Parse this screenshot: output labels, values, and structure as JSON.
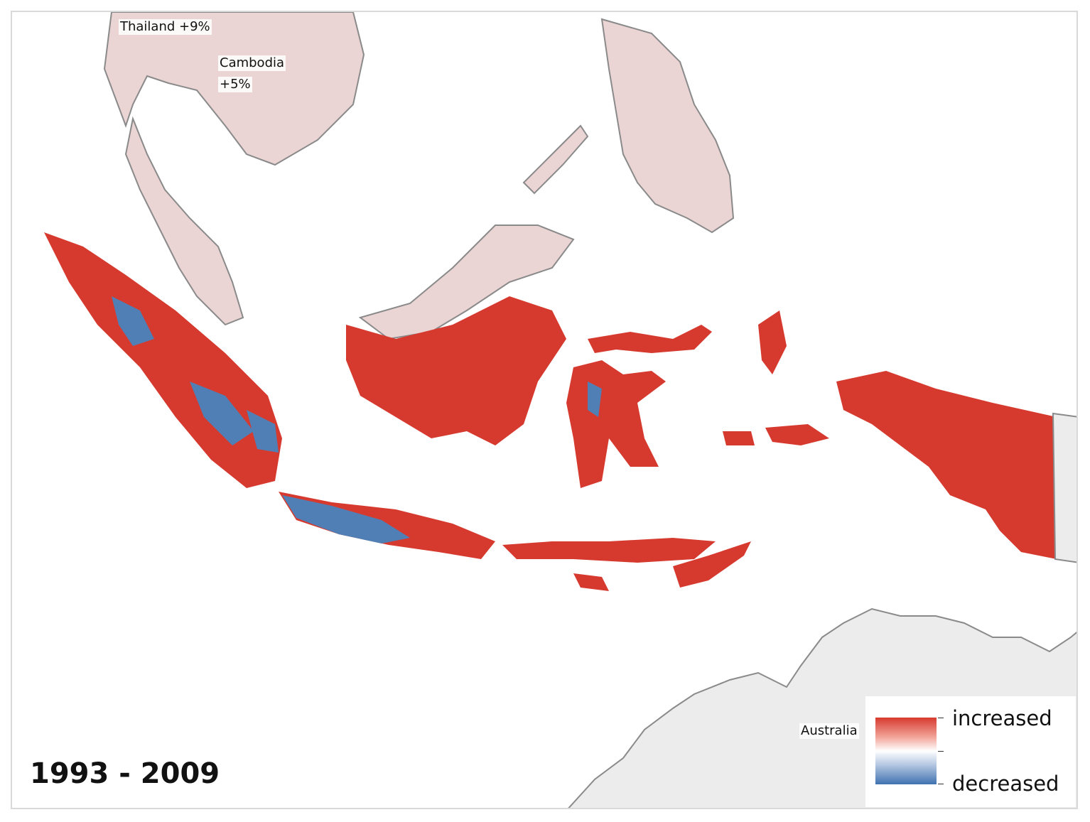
{
  "map": {
    "period": "1993 - 2009",
    "country_labels": {
      "thailand": "Thailand +9%",
      "cambodia_name": "Cambodia",
      "cambodia_value": "+5%",
      "australia": "Australia"
    },
    "legend": {
      "high_label": "increased",
      "low_label": "decreased",
      "color_high": "#d63a2f",
      "color_mid": "#ffffff",
      "color_low": "#3f72b0"
    },
    "colors": {
      "land_neutral": "#ececec",
      "land_light_increase": "#ead4d4",
      "coastline": "#8a8a8a"
    }
  }
}
